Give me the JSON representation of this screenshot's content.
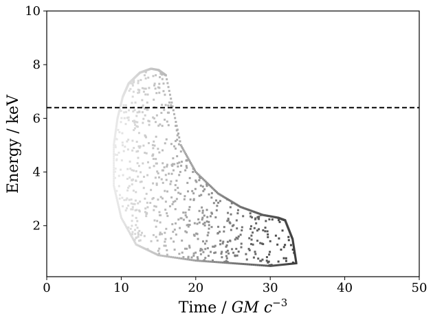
{
  "chart_data": {
    "type": "scatter",
    "title": "",
    "xlabel": "Time / ",
    "xlabel_math": "GM c",
    "xlabel_exponent": "−3",
    "ylabel": "Energy / keV",
    "xlim": [
      0,
      50
    ],
    "ylim": [
      0.1,
      10
    ],
    "xticks": [
      0,
      10,
      20,
      30,
      40,
      50
    ],
    "yticks": [
      2,
      4,
      6,
      8,
      10
    ],
    "grid": false,
    "colormap": "greyscale (light at early time, dark at late time)",
    "reference_line": {
      "y": 6.4,
      "style": "dashed",
      "color": "#000000"
    },
    "series": [
      {
        "values": [
          {
            "x": 9.0,
            "y": 5.0
          },
          {
            "x": 9.5,
            "y": 6.0
          },
          {
            "x": 10.2,
            "y": 6.8
          },
          {
            "x": 11.0,
            "y": 7.3
          },
          {
            "x": 12.5,
            "y": 7.7
          },
          {
            "x": 14.0,
            "y": 7.85
          },
          {
            "x": 15.0,
            "y": 7.8
          },
          {
            "x": 16.0,
            "y": 7.6
          },
          {
            "x": 18.0,
            "y": 5.0
          },
          {
            "x": 20.0,
            "y": 4.0
          },
          {
            "x": 23.0,
            "y": 3.2
          },
          {
            "x": 26.0,
            "y": 2.7
          },
          {
            "x": 29.0,
            "y": 2.4
          },
          {
            "x": 31.0,
            "y": 2.3
          },
          {
            "x": 32.0,
            "y": 2.2
          },
          {
            "x": 33.0,
            "y": 1.5
          },
          {
            "x": 33.5,
            "y": 0.6
          },
          {
            "x": 30.0,
            "y": 0.5
          },
          {
            "x": 25.0,
            "y": 0.6
          },
          {
            "x": 20.0,
            "y": 0.7
          },
          {
            "x": 15.0,
            "y": 0.9
          },
          {
            "x": 12.0,
            "y": 1.3
          },
          {
            "x": 10.0,
            "y": 2.3
          },
          {
            "x": 9.0,
            "y": 3.5
          }
        ]
      }
    ]
  }
}
